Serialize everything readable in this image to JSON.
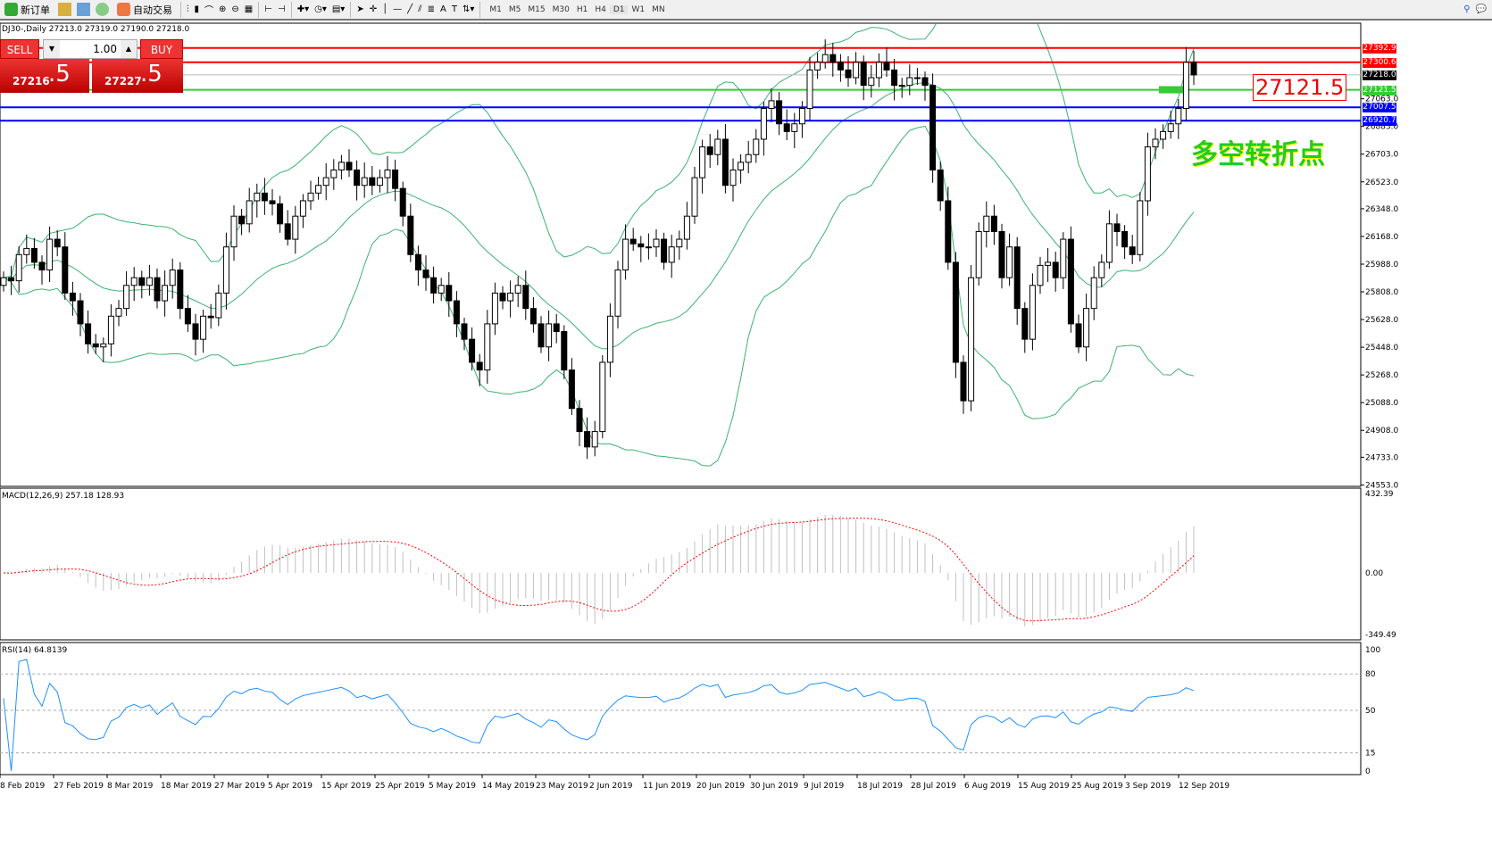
{
  "toolbar": {
    "new_order": "新订单",
    "auto_trade": "自动交易",
    "timeframes": [
      "M1",
      "M5",
      "M15",
      "M30",
      "H1",
      "H4",
      "D1",
      "W1",
      "MN"
    ],
    "active_timeframe": "D1"
  },
  "chart_header": "DJ30-,Daily  27213.0 27319.0 27190.0 27218.0",
  "trade_panel": {
    "sell": "SELL",
    "buy": "BUY",
    "lot": "1.00",
    "sell_price": "27216",
    "sell_frac": ".5",
    "buy_price": "27227",
    "buy_frac": ".5"
  },
  "annotations": {
    "price_box": "27121.5",
    "text": "多空转折点"
  },
  "levels": [
    {
      "price": 27392.9,
      "label": "27392.9",
      "color": "#ff0000"
    },
    {
      "price": 27300.6,
      "label": "27300.6",
      "color": "#ff0000"
    },
    {
      "price": 27218.0,
      "label": "27218.0",
      "color": "#000000"
    },
    {
      "price": 27121.5,
      "label": "27121.5",
      "color": "#33cc33"
    },
    {
      "price": 27007.5,
      "label": "27007.5",
      "color": "#0000ff"
    },
    {
      "price": 26920.7,
      "label": "26920.7",
      "color": "#0000ff"
    }
  ],
  "chart_data": {
    "type": "candlestick",
    "symbol": "DJ30-",
    "timeframe": "Daily",
    "y_ticks": [
      "27063.0",
      "26883.0",
      "26703.0",
      "26523.0",
      "26348.0",
      "26168.0",
      "25988.0",
      "25808.0",
      "25628.0",
      "25448.0",
      "25268.0",
      "25088.0",
      "24908.0",
      "24733.0",
      "24553.0"
    ],
    "ylim": [
      24553,
      27438
    ],
    "x_ticks": [
      "8 Feb 2019",
      "27 Feb 2019",
      "8 Mar 2019",
      "18 Mar 2019",
      "27 Mar 2019",
      "5 Apr 2019",
      "15 Apr 2019",
      "25 Apr 2019",
      "5 May 2019",
      "14 May 2019",
      "23 May 2019",
      "2 Jun 2019",
      "11 Jun 2019",
      "20 Jun 2019",
      "30 Jun 2019",
      "9 Jul 2019",
      "18 Jul 2019",
      "28 Jul 2019",
      "6 Aug 2019",
      "15 Aug 2019",
      "25 Aug 2019",
      "3 Sep 2019",
      "12 Sep 2019"
    ],
    "closes": [
      25900,
      25880,
      26050,
      26090,
      26000,
      25950,
      26150,
      26100,
      25800,
      25750,
      25600,
      25470,
      25450,
      25470,
      25650,
      25700,
      25850,
      25900,
      25850,
      25900,
      25750,
      25850,
      25950,
      25700,
      25600,
      25500,
      25650,
      25640,
      25800,
      26100,
      26300,
      26250,
      26400,
      26450,
      26400,
      26380,
      26250,
      26150,
      26300,
      26400,
      26450,
      26500,
      26550,
      26600,
      26650,
      26600,
      26500,
      26550,
      26500,
      26550,
      26600,
      26480,
      26300,
      26050,
      25950,
      25900,
      25800,
      25850,
      25750,
      25600,
      25500,
      25350,
      25300,
      25600,
      25800,
      25750,
      25800,
      25850,
      25700,
      25600,
      25450,
      25600,
      25550,
      25300,
      25050,
      24900,
      24800,
      24900,
      25350,
      25650,
      25950,
      26150,
      26120,
      26100,
      26100,
      26150,
      26000,
      26100,
      26150,
      26300,
      26550,
      26750,
      26700,
      26800,
      26500,
      26600,
      26650,
      26700,
      26800,
      27000,
      27050,
      26900,
      26850,
      26900,
      27000,
      27250,
      27300,
      27350,
      27300,
      27250,
      27200,
      27300,
      27150,
      27200,
      27300,
      27250,
      27150,
      27150,
      27200,
      27200,
      27150,
      26600,
      26400,
      26000,
      25350,
      25100,
      25900,
      26200,
      26300,
      26200,
      25900,
      26100,
      25700,
      25500,
      25850,
      25980,
      26000,
      25900,
      26150,
      25600,
      25450,
      25700,
      25900,
      26000,
      26250,
      26200,
      26100,
      26050,
      26400,
      26750,
      26800,
      26850,
      26900,
      27000,
      27300,
      27218
    ],
    "indicators": {
      "bollinger": {
        "color": "#3cb371"
      },
      "macd": {
        "label": "MACD(12,26,9) 257.18 128.93",
        "ticks": [
          "432.39",
          "0.00",
          "-349.49"
        ],
        "signal_color": "#ff0000",
        "hist_color": "#c0c0c0"
      },
      "rsi": {
        "label": "RSI(14) 64.8139",
        "ticks": [
          "100",
          "80",
          "50",
          "15",
          "0"
        ],
        "color": "#1e90ff"
      }
    }
  }
}
